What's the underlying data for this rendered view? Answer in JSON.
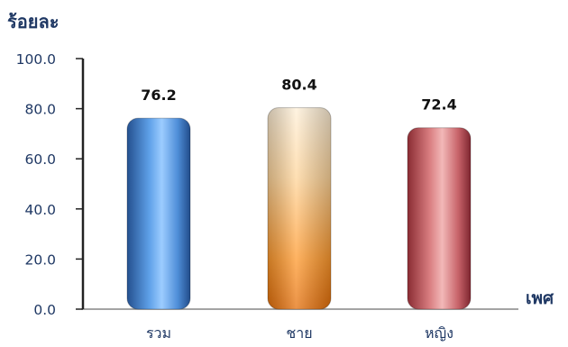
{
  "chart_data": {
    "type": "bar",
    "ylabel": "ร้อยละ",
    "xlabel": "เพศ",
    "categories": [
      "รวม",
      "ชาย",
      "หญิง"
    ],
    "values": [
      76.2,
      80.4,
      72.4
    ],
    "data_labels": [
      "76.2",
      "80.4",
      "72.4"
    ],
    "ylim": [
      0,
      100
    ],
    "yticks": [
      "0.0",
      "20.0",
      "40.0",
      "60.0",
      "80.0",
      "100.0"
    ],
    "grid": false,
    "legend": "none",
    "colors": {
      "bar_1": "#3a78c4",
      "bar_2": "#f08a1c",
      "bar_3": "#c25a5e",
      "axis": "#222222",
      "text": "#1f3864"
    }
  }
}
